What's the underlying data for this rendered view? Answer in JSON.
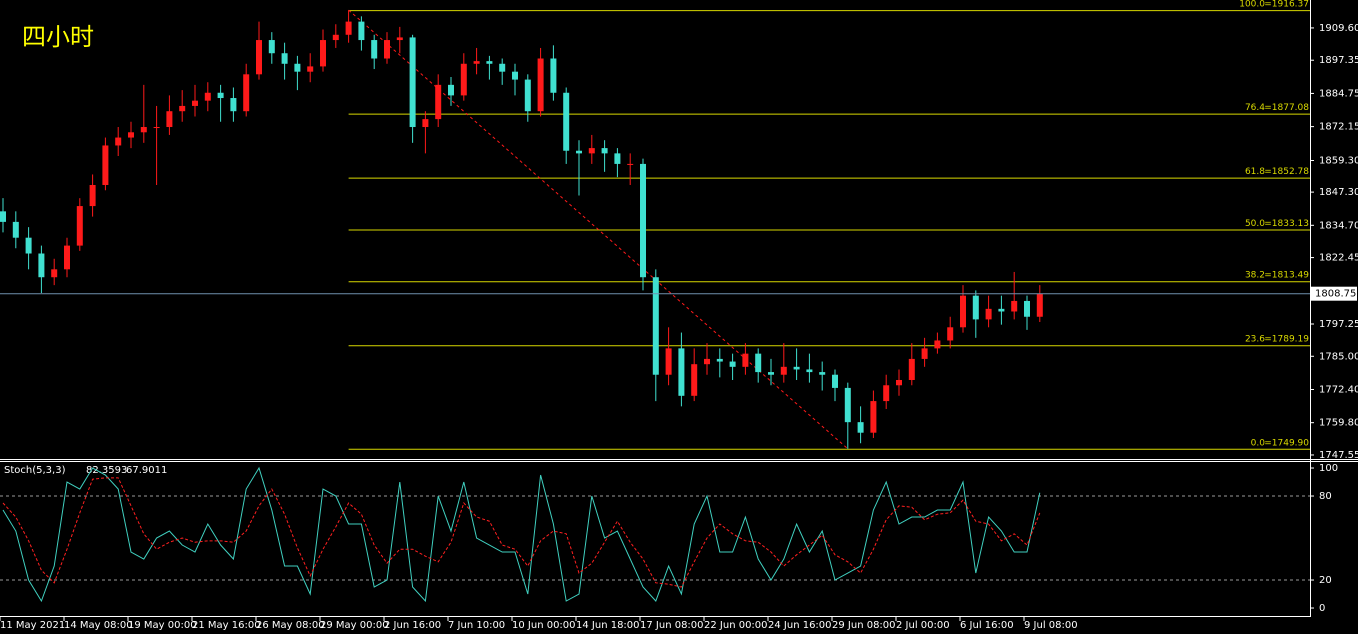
{
  "chart_data": [
    {
      "type": "candlestick",
      "title": "四小时",
      "up_color": "#ff1a1a",
      "down_color": "#40e0d0",
      "fib_color": "#d8d800",
      "trend_color": "#ff1a1a",
      "price_line_color": "#6f8fae",
      "ylim": [
        1746.4,
        1920.2
      ],
      "yticks": [
        {
          "value": 1909.6,
          "label": "1909.60"
        },
        1897.35,
        1884.75,
        1872.15,
        {
          "value": 1859.3,
          "label": "1859.30"
        },
        {
          "value": 1847.3,
          "label": "1847.30"
        },
        {
          "value": 1834.7,
          "label": "1834.70"
        },
        1822.45,
        1797.25,
        {
          "value": 1785,
          "label": "1785.00"
        },
        {
          "value": 1772.4,
          "label": "1772.40"
        },
        {
          "value": 1759.8,
          "label": "1759.80"
        },
        1747.55
      ],
      "categories": [
        "11 May 2021",
        null,
        null,
        null,
        null,
        "14 May 08:00",
        null,
        null,
        null,
        null,
        "19 May 00:00",
        null,
        null,
        null,
        null,
        "21 May 16:00",
        null,
        null,
        null,
        null,
        "26 May 08:00",
        null,
        null,
        null,
        null,
        "29 May 00:00",
        null,
        null,
        null,
        null,
        "2 Jun 16:00",
        null,
        null,
        null,
        null,
        "7 Jun 10:00",
        null,
        null,
        null,
        null,
        "10 Jun 00:00",
        null,
        null,
        null,
        null,
        "14 Jun 18:00",
        null,
        null,
        null,
        null,
        "17 Jun 08:00",
        null,
        null,
        null,
        null,
        "22 Jun 00:00",
        null,
        null,
        null,
        null,
        "24 Jun 16:00",
        null,
        null,
        null,
        null,
        "29 Jun 08:00",
        null,
        null,
        null,
        null,
        "2 Jul 00:00",
        null,
        null,
        null,
        null,
        "6 Jul 16:00",
        null,
        null,
        null,
        null,
        "9 Jul 08:00",
        null
      ],
      "ohlc": [
        [
          1840,
          1845,
          1832,
          1836
        ],
        [
          1836,
          1840,
          1826,
          1830
        ],
        [
          1830,
          1834,
          1818,
          1824
        ],
        [
          1824,
          1827,
          1809,
          1815
        ],
        [
          1815,
          1822,
          1812,
          1818
        ],
        [
          1818,
          1830,
          1815,
          1827
        ],
        [
          1827,
          1845,
          1825,
          1842
        ],
        [
          1842,
          1854,
          1838,
          1850
        ],
        [
          1850,
          1868,
          1848,
          1865
        ],
        [
          1865,
          1872,
          1861,
          1868
        ],
        [
          1868,
          1874,
          1864,
          1870
        ],
        [
          1870,
          1888,
          1866,
          1872
        ],
        [
          1872,
          1880,
          1850,
          1872
        ],
        [
          1872,
          1884,
          1869,
          1878
        ],
        [
          1878,
          1886,
          1874,
          1880
        ],
        [
          1880,
          1888,
          1876,
          1882
        ],
        [
          1882,
          1889,
          1878,
          1885
        ],
        [
          1885,
          1888,
          1874,
          1883
        ],
        [
          1883,
          1887,
          1874,
          1878
        ],
        [
          1878,
          1896,
          1876,
          1892
        ],
        [
          1892,
          1912,
          1890,
          1905
        ],
        [
          1905,
          1908,
          1896,
          1900
        ],
        [
          1900,
          1904,
          1890,
          1896
        ],
        [
          1896,
          1899,
          1886,
          1893
        ],
        [
          1893,
          1900,
          1889,
          1895
        ],
        [
          1895,
          1909,
          1893,
          1905
        ],
        [
          1905,
          1911,
          1902,
          1907
        ],
        [
          1907,
          1916.37,
          1904,
          1912
        ],
        [
          1912,
          1914,
          1901,
          1905
        ],
        [
          1905,
          1907,
          1894,
          1898
        ],
        [
          1898,
          1908,
          1896,
          1905
        ],
        [
          1905,
          1910,
          1900,
          1906
        ],
        [
          1906,
          1907,
          1866,
          1872
        ],
        [
          1872,
          1878,
          1862,
          1875
        ],
        [
          1875,
          1892,
          1872,
          1888
        ],
        [
          1888,
          1891,
          1880,
          1884
        ],
        [
          1884,
          1900,
          1882,
          1896
        ],
        [
          1896,
          1902,
          1892,
          1897
        ],
        [
          1897,
          1899,
          1890,
          1896
        ],
        [
          1896,
          1898,
          1888,
          1893
        ],
        [
          1893,
          1896,
          1884,
          1890
        ],
        [
          1890,
          1892,
          1874,
          1878
        ],
        [
          1878,
          1902,
          1876,
          1898
        ],
        [
          1898,
          1903,
          1882,
          1885
        ],
        [
          1885,
          1887,
          1858,
          1863
        ],
        [
          1863,
          1867,
          1846,
          1862
        ],
        [
          1862,
          1869,
          1858,
          1864
        ],
        [
          1864,
          1867,
          1855,
          1862
        ],
        [
          1862,
          1864,
          1853,
          1858
        ],
        [
          1858,
          1862,
          1850,
          1858
        ],
        [
          1858,
          1860,
          1810,
          1815
        ],
        [
          1815,
          1818,
          1768,
          1778
        ],
        [
          1778,
          1796,
          1774,
          1788
        ],
        [
          1788,
          1794,
          1766,
          1770
        ],
        [
          1770,
          1788,
          1768,
          1782
        ],
        [
          1782,
          1790,
          1778,
          1784
        ],
        [
          1784,
          1788,
          1777,
          1783
        ],
        [
          1783,
          1786,
          1776,
          1781
        ],
        [
          1781,
          1790,
          1778,
          1786
        ],
        [
          1786,
          1788,
          1775,
          1779
        ],
        [
          1779,
          1784,
          1774,
          1778
        ],
        [
          1778,
          1790,
          1775,
          1781
        ],
        [
          1781,
          1788,
          1776,
          1780
        ],
        [
          1780,
          1786,
          1775,
          1779
        ],
        [
          1779,
          1783,
          1772,
          1778
        ],
        [
          1778,
          1780,
          1768,
          1773
        ],
        [
          1773,
          1775,
          1749.9,
          1760
        ],
        [
          1760,
          1766,
          1752,
          1756
        ],
        [
          1756,
          1772,
          1754,
          1768
        ],
        [
          1768,
          1778,
          1765,
          1774
        ],
        [
          1774,
          1780,
          1770,
          1776
        ],
        [
          1776,
          1790,
          1774,
          1784
        ],
        [
          1784,
          1792,
          1781,
          1788
        ],
        [
          1788,
          1794,
          1786,
          1791
        ],
        [
          1791,
          1800,
          1788,
          1796
        ],
        [
          1796,
          1812,
          1794,
          1808
        ],
        [
          1808,
          1810,
          1792,
          1799
        ],
        [
          1799,
          1808,
          1796,
          1803
        ],
        [
          1803,
          1808,
          1797,
          1802
        ],
        [
          1802,
          1817,
          1799,
          1806
        ],
        [
          1806,
          1808,
          1795,
          1800
        ],
        [
          1800,
          1812,
          1798,
          1808.75
        ]
      ],
      "fib_levels": [
        {
          "ratio_label": "100.0",
          "price": 1916.37,
          "price_label": "=1916.37"
        },
        {
          "ratio_label": "76.4",
          "price": 1877.08,
          "price_label": "=1877.08"
        },
        {
          "ratio_label": "61.8",
          "price": 1852.78,
          "price_label": "=1852.78"
        },
        {
          "ratio_label": "50.0",
          "price": 1833.13,
          "price_label": "=1833.13"
        },
        {
          "ratio_label": "38.2",
          "price": 1813.49,
          "price_label": "=1813.49"
        },
        {
          "ratio_label": "23.6",
          "price": 1789.19,
          "price_label": "=1789.19"
        },
        {
          "ratio_label": "0.0",
          "price": 1749.9,
          "price_label": "=1749.90"
        }
      ]
    },
    {
      "type": "line",
      "title": "Stoch(5,3,3)",
      "ylim": [
        -5.7,
        104.3
      ],
      "yticks": [
        0,
        20,
        80,
        100
      ],
      "levels": [
        20,
        80
      ],
      "level_color": "#9a9a9a",
      "series": [
        {
          "color": "#40d0c0",
          "dash": false,
          "values": [
            70,
            55,
            20,
            5,
            30,
            90,
            85,
            100,
            95,
            85,
            40,
            35,
            50,
            55,
            45,
            40,
            60,
            45,
            35,
            85,
            100,
            70,
            30,
            30,
            10,
            85,
            80,
            60,
            60,
            15,
            20,
            90,
            15,
            5,
            80,
            55,
            90,
            50,
            45,
            40,
            40,
            10,
            95,
            60,
            5,
            10,
            80,
            50,
            55,
            35,
            15,
            5,
            30,
            10,
            60,
            80,
            40,
            40,
            65,
            35,
            20,
            35,
            60,
            40,
            55,
            20,
            25,
            30,
            70,
            90,
            60,
            65,
            65,
            70,
            70,
            90,
            25,
            65,
            55,
            40,
            40,
            82.3593
          ]
        },
        {
          "color": "#ff2020",
          "dash": true,
          "values": [
            75,
            65,
            48,
            27,
            18,
            42,
            68,
            92,
            93,
            93,
            73,
            53,
            42,
            47,
            50,
            47,
            48,
            48,
            47,
            55,
            73,
            85,
            67,
            43,
            23,
            42,
            58,
            75,
            67,
            45,
            32,
            42,
            42,
            37,
            33,
            47,
            75,
            65,
            62,
            45,
            42,
            30,
            48,
            55,
            53,
            25,
            32,
            47,
            62,
            47,
            35,
            18,
            17,
            15,
            33,
            50,
            60,
            53,
            48,
            47,
            40,
            30,
            38,
            45,
            52,
            38,
            33,
            25,
            42,
            63,
            73,
            72,
            63,
            67,
            68,
            77,
            62,
            60,
            48,
            53,
            45,
            67.9011
          ]
        }
      ]
    }
  ]
}
